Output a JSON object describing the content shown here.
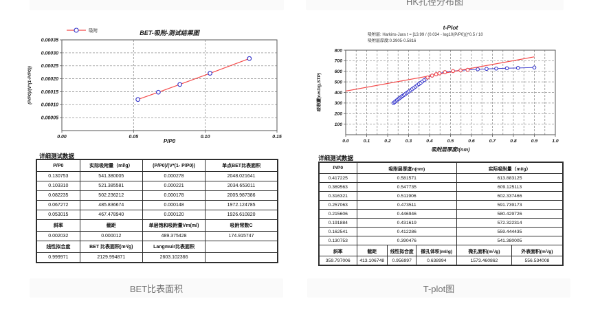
{
  "page": {
    "top_caption_left": "",
    "top_caption_right": "HK孔径分布图",
    "bottom_caption_left": "BET比表面积",
    "bottom_caption_right": "T-plot图"
  },
  "bet_section": {
    "details_label": "详细测试数据",
    "table": {
      "headers": [
        "P/P0",
        "实际吸附量（ml/g）",
        "(P/P0)/(V*(1- P/P0))",
        "单点BET比表面积"
      ],
      "rows": [
        [
          "0.130753",
          "541.380005",
          "0.000278",
          "2048.021641"
        ],
        [
          "0.103310",
          "521.385581",
          "0.000221",
          "2034.653011"
        ],
        [
          "0.082235",
          "502.236212",
          "0.000178",
          "2005.987386"
        ],
        [
          "0.067272",
          "485.836674",
          "0.000148",
          "1972.124785"
        ],
        [
          "0.053015",
          "467.478940",
          "0.000120",
          "1926.610820"
        ]
      ],
      "stats1_headers": [
        "斜率",
        "截距",
        "单层饱和吸附量Vm(ml)",
        "吸附常数C"
      ],
      "stats1_values": [
        "0.002032",
        "0.000012",
        "489.375428",
        "174.915747"
      ],
      "stats2_headers": [
        "线性拟合度",
        "BET 比表面积(m²/g)",
        "Langmuir比表面积",
        ""
      ],
      "stats2_values": [
        "0.999971",
        "2129.994871",
        "2603.102366",
        ""
      ]
    }
  },
  "tplot_section": {
    "details_label": "详细测试数据",
    "table": {
      "headers": [
        "P/P0",
        "吸附层厚度n(nm)",
        "实际吸附量（ml/g）"
      ],
      "rows": [
        [
          "0.417225",
          "0.581571",
          "613.883125"
        ],
        [
          "0.369563",
          "0.547735",
          "609.125113"
        ],
        [
          "0.316321",
          "0.511906",
          "602.337466"
        ],
        [
          "0.257063",
          "0.473511",
          "591.739173"
        ],
        [
          "0.215606",
          "0.446946",
          "580.429726"
        ],
        [
          "0.191884",
          "0.431619",
          "572.322314"
        ],
        [
          "0.162541",
          "0.412286",
          "559.444435"
        ],
        [
          "0.130753",
          "0.390476",
          "541.380005"
        ]
      ],
      "stats_headers": [
        "斜率",
        "截距",
        "线性拟合度",
        "微孔体积(ml/g)",
        "微孔面积(m²/g)",
        "外表面积(m²/g)"
      ],
      "stats_values": [
        "359.797006",
        "413.106748",
        "0.956997",
        "0.638994",
        "1573.460862",
        "556.534008"
      ]
    }
  },
  "colors": {
    "fit_line": "#f44b4b",
    "marker_blue": "#2d2dc8",
    "curve_blue": "#4242cf",
    "grid": "#909090",
    "plot_border": "#555555",
    "caption_bg": "#fafafa",
    "caption_text": "#6f6f6f"
  },
  "chart_data": [
    {
      "type": "line",
      "title": "BET-吸附-测试结果图",
      "legend": [
        "吸附"
      ],
      "legend_position": "top-left",
      "xlabel": "P/P0",
      "ylabel": "(P/P0)/(V*(1-P/P0))",
      "xlim": [
        0,
        0.15
      ],
      "ylim": [
        0,
        0.00035
      ],
      "xticks": [
        "0.00",
        "0.05",
        "0.10",
        "0.15"
      ],
      "yticks": [
        "0.00005",
        "0.00010",
        "0.00015",
        "0.00020",
        "0.00025",
        "0.00030",
        "0.00035"
      ],
      "grid": "dashed",
      "series": [
        {
          "name": "吸附",
          "x": [
            0.053015,
            0.067272,
            0.082235,
            0.10331,
            0.130753
          ],
          "y": [
            0.00012,
            0.000148,
            0.000178,
            0.000221,
            0.000278
          ]
        }
      ]
    },
    {
      "type": "line",
      "title": "t-Plot",
      "subtitle": [
        "吸附层: Harkins-Jura t = [13.99 / (0.034 - log10(P/P0))]^0.5 / 10",
        "吸附层厚度:0.3905-0.5816"
      ],
      "xlabel": "吸附层厚度t(nm)",
      "ylabel": "吸附量(cm3/g,STP)",
      "xlim": [
        0,
        1.0
      ],
      "ylim": [
        0,
        800
      ],
      "xticks": [
        "0.0",
        "0.1",
        "0.2",
        "0.3",
        "0.4",
        "0.5",
        "0.6",
        "0.7",
        "0.8",
        "0.9",
        "1.0"
      ],
      "yticks": [
        "100",
        "200",
        "300",
        "400",
        "500",
        "600",
        "700",
        "800"
      ],
      "grid": "dashed",
      "series": [
        {
          "x": [
            0.228,
            0.2335,
            0.239,
            0.2445,
            0.25,
            0.2555,
            0.261,
            0.2665,
            0.272,
            0.278,
            0.284,
            0.29,
            0.2965,
            0.303,
            0.31,
            0.3175,
            0.325,
            0.333,
            0.341,
            0.349,
            0.3575,
            0.366,
            0.375,
            0.385,
            0.390476,
            0.412286,
            0.431619,
            0.446946,
            0.473511,
            0.511906,
            0.547735,
            0.581571,
            0.63,
            0.672,
            0.718,
            0.769,
            0.822,
            0.9
          ],
          "y": [
            300,
            309,
            318,
            327,
            336,
            344,
            352,
            360,
            368,
            376,
            384,
            393,
            402,
            411,
            421,
            432,
            443,
            455,
            467,
            479,
            491,
            504,
            517,
            532,
            541.380005,
            559.444435,
            572.322314,
            580.429726,
            591.739173,
            602.337466,
            609.125113,
            613.883125,
            619,
            623,
            626,
            629,
            632,
            636
          ]
        }
      ],
      "fit_markers": {
        "x": [
          0.390476,
          0.412286,
          0.431619,
          0.446946,
          0.473511,
          0.511906,
          0.547735,
          0.581571
        ],
        "y": [
          541.380005,
          559.444435,
          572.322314,
          580.429726,
          591.739173,
          602.337466,
          609.125113,
          613.883125
        ]
      },
      "fit_line": {
        "slope": 359.797006,
        "intercept": 413.106748,
        "x1": 0,
        "x2": 0.9
      }
    }
  ]
}
